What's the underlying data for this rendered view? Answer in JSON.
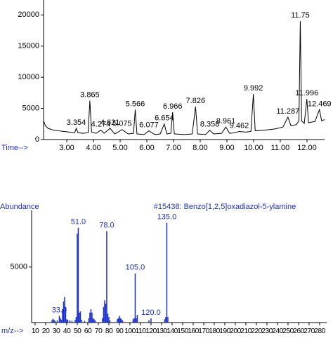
{
  "chart_data": [
    {
      "type": "line",
      "x_label": "Time-->",
      "color": "#000000",
      "label_color": "#1a2fd0",
      "xlim": [
        2.13,
        12.66
      ],
      "ylim": [
        0,
        22400
      ],
      "xticks": [
        {
          "value": 3,
          "label": "3.00"
        },
        {
          "value": 4,
          "label": "4.00"
        },
        {
          "value": 5,
          "label": "5.00"
        },
        {
          "value": 6,
          "label": "6.00"
        },
        {
          "value": 7,
          "label": "7.00"
        },
        {
          "value": 8,
          "label": "8.00"
        },
        {
          "value": 9,
          "label": "9.00"
        },
        {
          "value": 10,
          "label": "10.00"
        },
        {
          "value": 11,
          "label": "11.00"
        },
        {
          "value": 12,
          "label": "12.00"
        }
      ],
      "yticks": [
        0,
        5000,
        10000,
        15000,
        20000
      ],
      "x": [
        2.13,
        2.2,
        2.3,
        2.5,
        2.7,
        2.9,
        3.1,
        3.3,
        3.354,
        3.42,
        3.6,
        3.8,
        3.865,
        3.93,
        4.1,
        4.274,
        4.4,
        4.621,
        4.8,
        5.075,
        5.3,
        5.5,
        5.566,
        5.63,
        5.9,
        6.077,
        6.3,
        6.5,
        6.654,
        6.75,
        6.9,
        6.966,
        7.03,
        7.4,
        7.7,
        7.826,
        7.9,
        8.2,
        8.358,
        8.5,
        8.8,
        8.961,
        9.1,
        9.3,
        9.462,
        9.7,
        9.9,
        9.992,
        10.06,
        10.4,
        10.8,
        11.1,
        11.287,
        11.4,
        11.6,
        11.7,
        11.75,
        11.8,
        11.9,
        11.996,
        12.06,
        12.3,
        12.469,
        12.55,
        12.66
      ],
      "values": [
        3000,
        2200,
        1800,
        1500,
        1400,
        1300,
        1200,
        1100,
        1800,
        1100,
        1000,
        1100,
        6250,
        1200,
        1000,
        1500,
        1000,
        1800,
        900,
        1600,
        900,
        1000,
        4800,
        900,
        800,
        1400,
        800,
        900,
        2500,
        900,
        1000,
        4400,
        900,
        800,
        900,
        5300,
        900,
        800,
        1500,
        900,
        1000,
        2000,
        1000,
        1100,
        1300,
        1200,
        1300,
        7300,
        1400,
        1500,
        1700,
        2000,
        3600,
        2200,
        2400,
        3000,
        19000,
        3000,
        2600,
        6500,
        2700,
        2900,
        4800,
        3000,
        3200
      ],
      "peak_labels": [
        3.354,
        3.865,
        4.274,
        4.621,
        5.075,
        5.566,
        6.077,
        6.654,
        6.966,
        7.826,
        8.358,
        8.961,
        9.462,
        9.992,
        11.287,
        11.75,
        11.996,
        12.469
      ]
    },
    {
      "type": "bar",
      "title": "#15438: Benzo[1,2,5]oxadiazol-5-ylamine",
      "y_label": "Abundance",
      "x_label": "m/z-->",
      "color": "#1a2fd0",
      "xlim": [
        6.7,
        286.7
      ],
      "ylim": [
        0,
        10100
      ],
      "xticks": [
        10,
        20,
        30,
        40,
        50,
        60,
        70,
        80,
        90,
        100,
        110,
        120,
        130,
        140,
        150,
        160,
        170,
        180,
        190,
        200,
        210,
        220,
        230,
        240,
        250,
        260,
        270,
        280
      ],
      "yticks": [
        5000
      ],
      "x": [
        26,
        27,
        28,
        29,
        31,
        33,
        34,
        35,
        36,
        37,
        38,
        39,
        40,
        41,
        43,
        45,
        48,
        49,
        50,
        51,
        52,
        53,
        54,
        57,
        61,
        62,
        63,
        64,
        65,
        66,
        67,
        74,
        75,
        76,
        77,
        78,
        79,
        80,
        81,
        88,
        89,
        90,
        91,
        92,
        93,
        103,
        104,
        105,
        106,
        107,
        118,
        120,
        133,
        134,
        135,
        136
      ],
      "values": [
        200,
        350,
        250,
        150,
        200,
        600,
        400,
        250,
        1200,
        1900,
        2300,
        1400,
        300,
        250,
        200,
        150,
        250,
        500,
        8000,
        8540,
        900,
        1000,
        250,
        150,
        400,
        900,
        1200,
        900,
        400,
        300,
        200,
        400,
        1400,
        2000,
        1700,
        8230,
        800,
        500,
        200,
        300,
        400,
        600,
        400,
        300,
        200,
        300,
        400,
        4430,
        400,
        700,
        200,
        380,
        300,
        500,
        8990,
        500
      ],
      "annotations": [
        {
          "value": 33,
          "label": "33.0"
        },
        {
          "value": 51,
          "label": "51.0"
        },
        {
          "value": 78,
          "label": "78.0"
        },
        {
          "value": 105,
          "label": "105.0"
        },
        {
          "value": 120,
          "label": "120.0"
        },
        {
          "value": 135,
          "label": "135.0"
        }
      ]
    }
  ]
}
